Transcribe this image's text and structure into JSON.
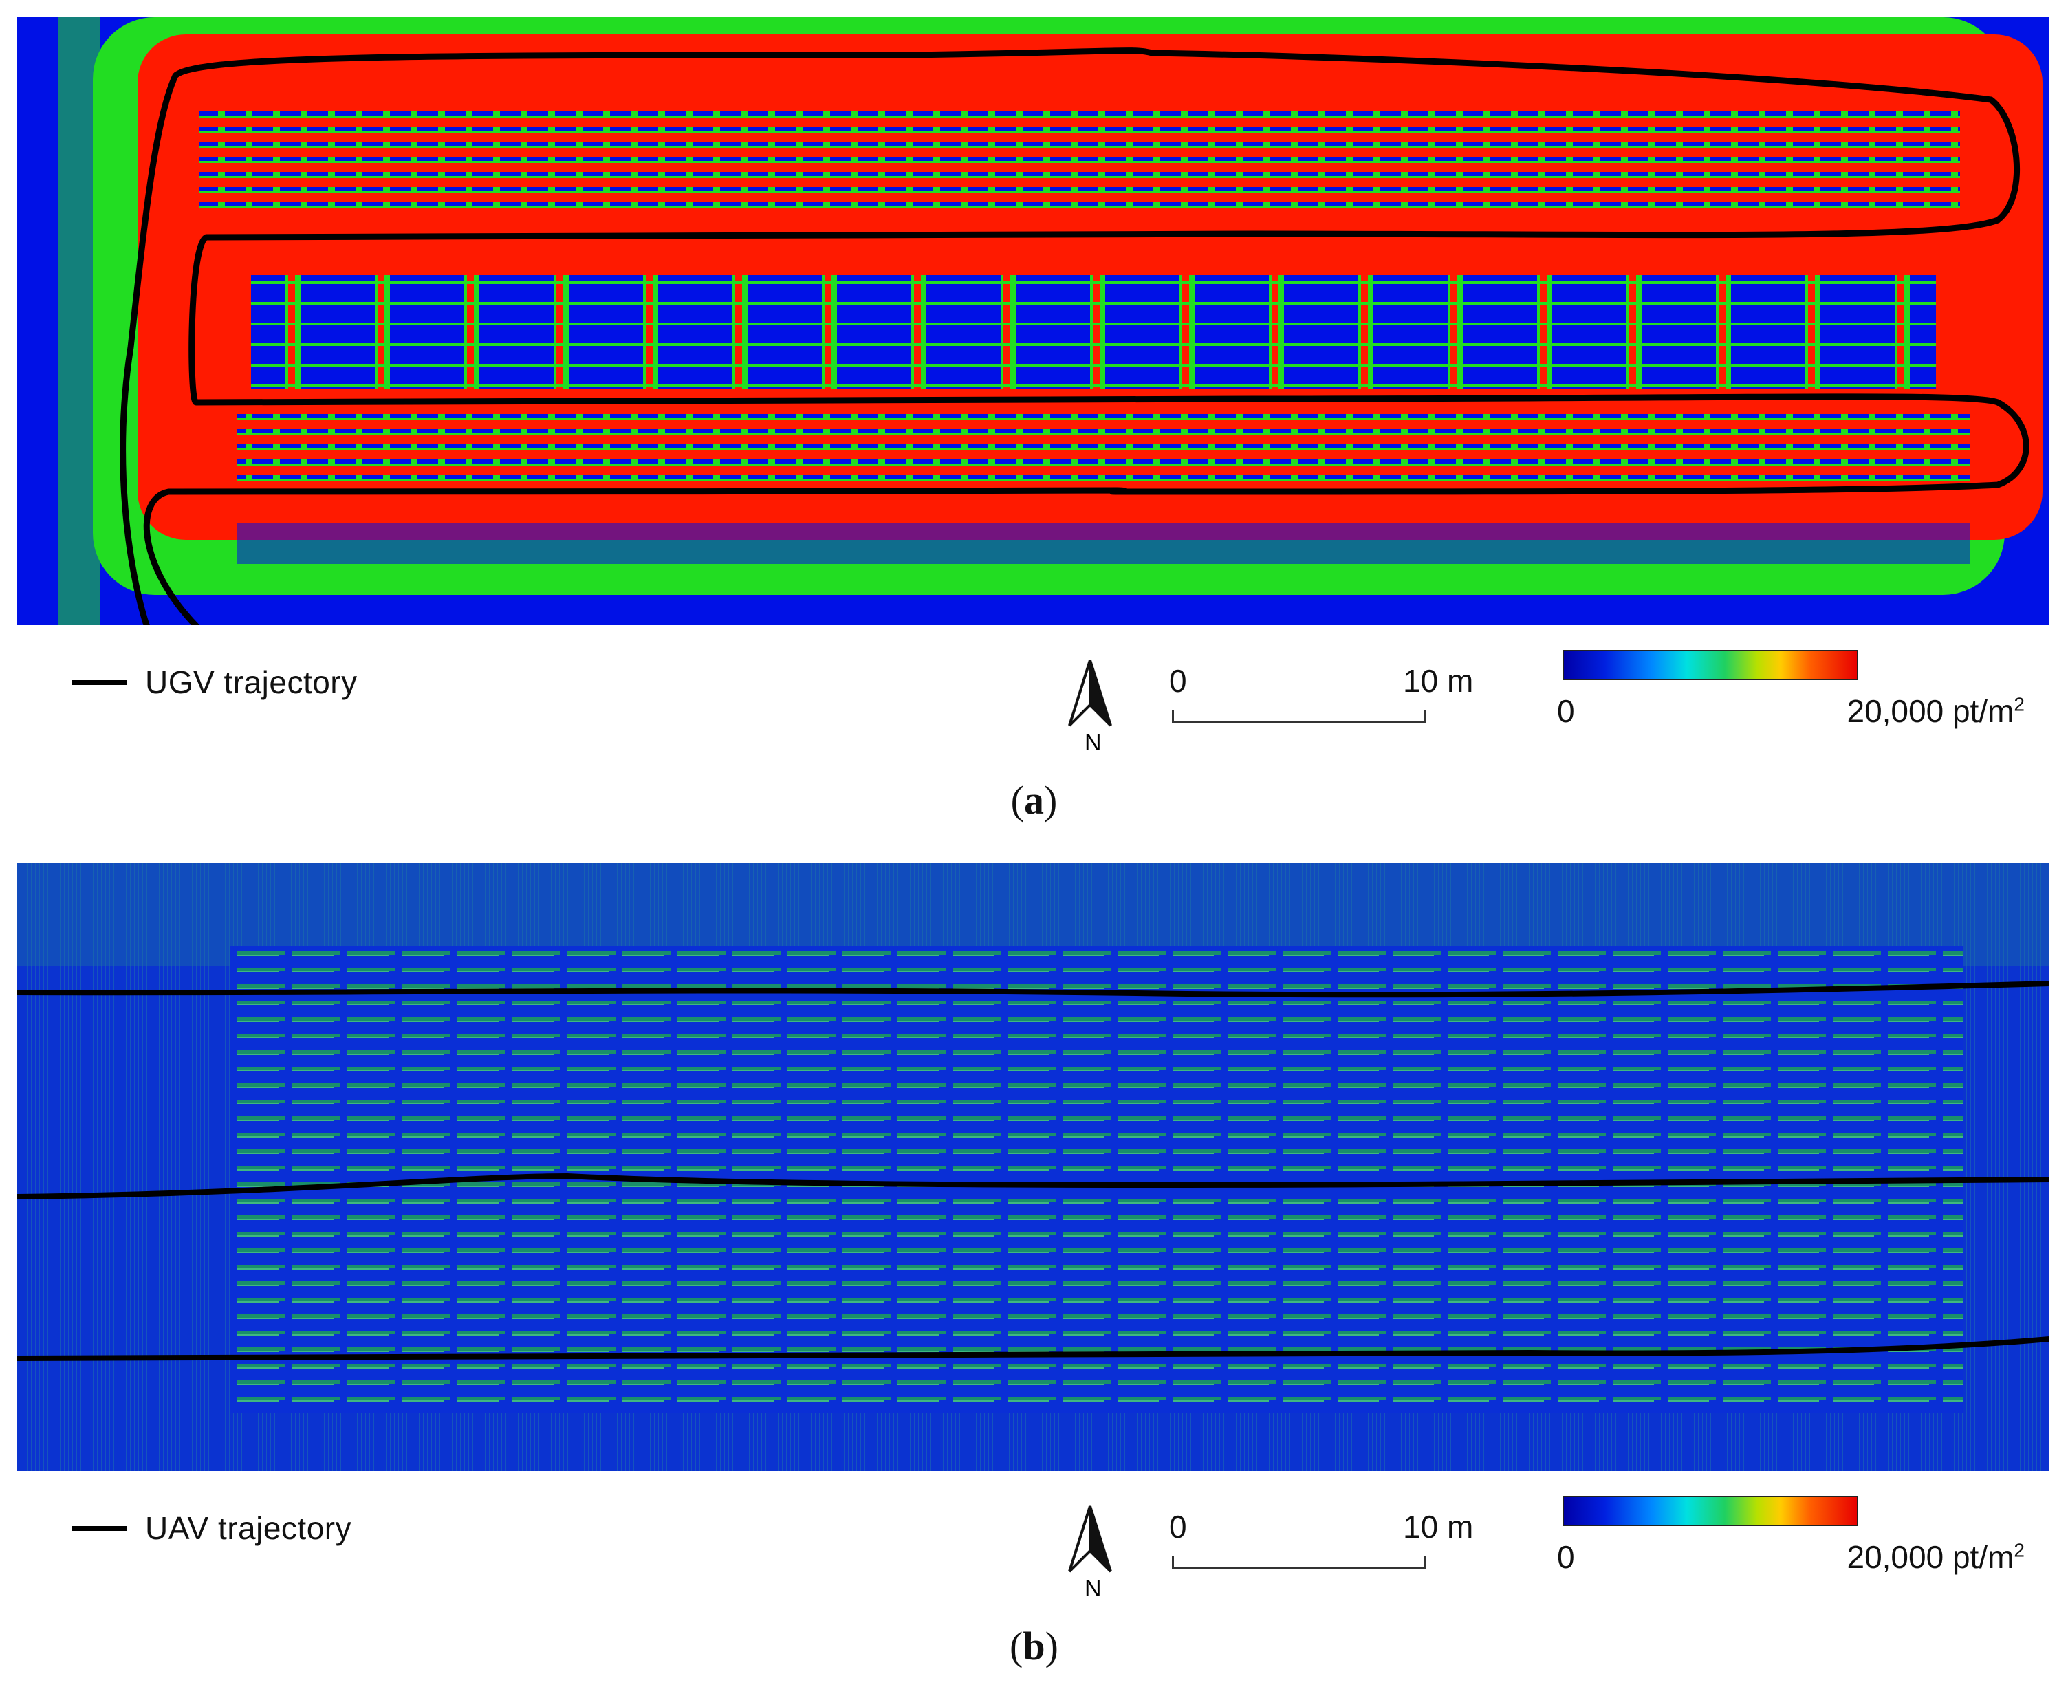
{
  "panels": [
    {
      "id": "a",
      "caption_letter": "a",
      "trajectory_label": "UGV trajectory",
      "north_label": "N",
      "scale": {
        "start": "0",
        "end": "10 m"
      },
      "colorbar": {
        "min": "0",
        "max": "20,000 pt/m",
        "max_sup": "2"
      },
      "colors": {
        "low": "#0011e6",
        "mid": "#22dd22",
        "high": "#ff1a00",
        "trajectory": "#000000"
      }
    },
    {
      "id": "b",
      "caption_letter": "b",
      "trajectory_label": "UAV trajectory",
      "north_label": "N",
      "scale": {
        "start": "0",
        "end": "10 m"
      },
      "colorbar": {
        "min": "0",
        "max": "20,000 pt/m",
        "max_sup": "2"
      },
      "colors": {
        "low": "#0a2fd6",
        "mid": "#1a8f6a",
        "trajectory": "#000000"
      }
    }
  ]
}
